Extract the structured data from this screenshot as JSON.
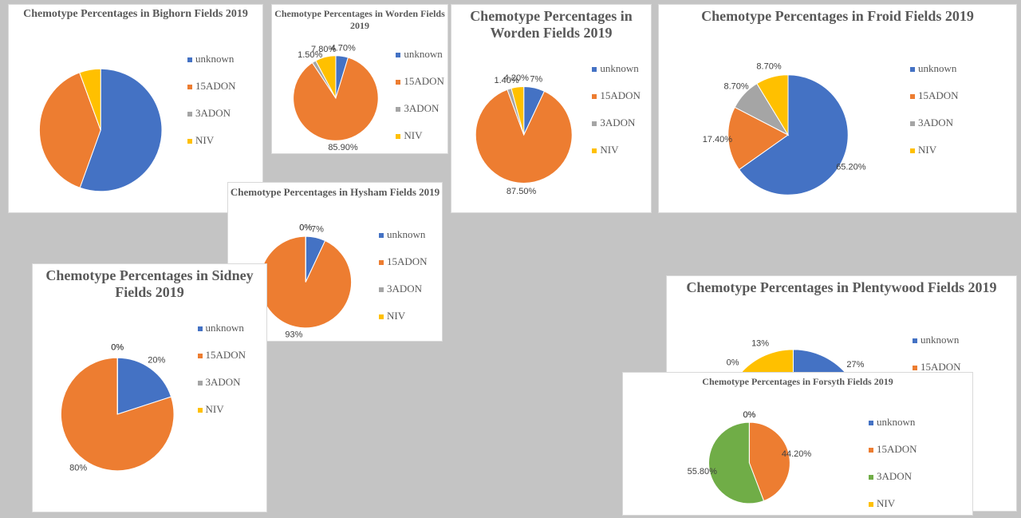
{
  "chart_data": [
    {
      "type": "pie",
      "title": "Chemotype Percentages in Bighorn Fields 2019",
      "categories": [
        "unknown",
        "15ADON",
        "3ADON",
        "NIV"
      ],
      "values": [
        55.5,
        38.9,
        0,
        5.6
      ],
      "colors": [
        "#4472c4",
        "#ed7d31",
        "#a5a5a5",
        "#ffc000"
      ]
    },
    {
      "type": "pie",
      "title": "Chemotype Percentages in Worden Fields 2019",
      "categories": [
        "unknown",
        "15ADON",
        "3ADON",
        "NIV"
      ],
      "values": [
        4.7,
        85.9,
        1.5,
        7.8
      ],
      "value_labels": [
        "4.70%",
        "85.90%",
        "1.50%",
        "7.80%"
      ],
      "colors": [
        "#4472c4",
        "#ed7d31",
        "#a5a5a5",
        "#ffc000"
      ]
    },
    {
      "type": "pie",
      "title": "Chemotype Percentages in Worden Fields 2019",
      "categories": [
        "unknown",
        "15ADON",
        "3ADON",
        "NIV"
      ],
      "values": [
        7,
        87.5,
        1.4,
        4.2
      ],
      "value_labels": [
        "7%",
        "87.50%",
        "1.40%",
        "4.20%"
      ],
      "colors": [
        "#4472c4",
        "#ed7d31",
        "#a5a5a5",
        "#ffc000"
      ]
    },
    {
      "type": "pie",
      "title": "Chemotype Percentages in Froid Fields 2019",
      "categories": [
        "unknown",
        "15ADON",
        "3ADON",
        "NIV"
      ],
      "values": [
        65.2,
        17.4,
        8.7,
        8.7
      ],
      "value_labels": [
        "65.20%",
        "17.40%",
        "8.70%",
        "8.70%"
      ],
      "colors": [
        "#4472c4",
        "#ed7d31",
        "#a5a5a5",
        "#ffc000"
      ]
    },
    {
      "type": "pie",
      "title": "Chemotype Percentages in Hysham Fields 2019",
      "categories": [
        "unknown",
        "15ADON",
        "3ADON",
        "NIV"
      ],
      "values": [
        7,
        93,
        0,
        0
      ],
      "value_labels": [
        "7%",
        "93%",
        "0%",
        "0%"
      ],
      "colors": [
        "#4472c4",
        "#ed7d31",
        "#a5a5a5",
        "#ffc000"
      ]
    },
    {
      "type": "pie",
      "title": "Chemotype Percentages in Sidney Fields 2019",
      "categories": [
        "unknown",
        "15ADON",
        "3ADON",
        "NIV"
      ],
      "values": [
        20,
        80,
        0,
        0
      ],
      "value_labels": [
        "20%",
        "80%",
        "0%",
        "0%"
      ],
      "colors": [
        "#4472c4",
        "#ed7d31",
        "#a5a5a5",
        "#ffc000"
      ]
    },
    {
      "type": "pie",
      "title": "Chemotype Percentages in Plentywood Fields 2019",
      "categories": [
        "unknown",
        "15ADON",
        "3ADON",
        "NIV"
      ],
      "values": [
        27,
        60,
        0,
        13
      ],
      "value_labels": [
        "27%",
        "60%",
        "0%",
        "13%"
      ],
      "colors": [
        "#4472c4",
        "#ed7d31",
        "#a5a5a5",
        "#ffc000"
      ]
    },
    {
      "type": "pie",
      "title": "Chemotype Percentages in Forsyth Fields 2019",
      "categories": [
        "unknown",
        "15ADON",
        "3ADON",
        "NIV"
      ],
      "values": [
        0,
        44.2,
        55.8,
        0
      ],
      "value_labels": [
        "0%",
        "44.20%",
        "55.80%",
        "0%"
      ],
      "colors": [
        "#4472c4",
        "#ed7d31",
        "#70ad47",
        "#ffc000"
      ]
    }
  ]
}
